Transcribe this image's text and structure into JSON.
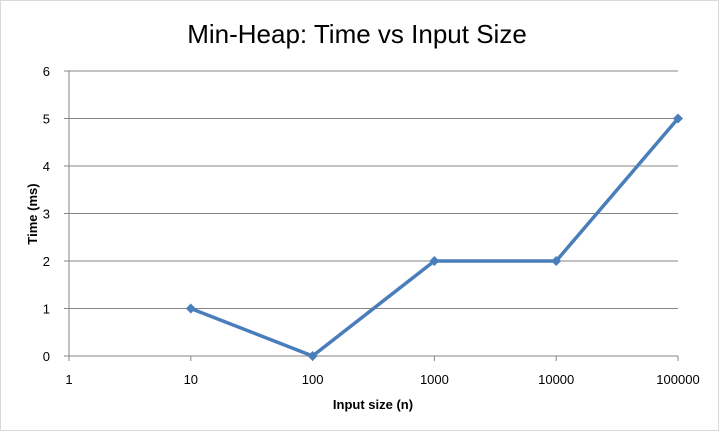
{
  "chart_data": {
    "type": "line",
    "title": "Min-Heap: Time vs Input Size",
    "xlabel": "Input size (n)",
    "ylabel": "Time (ms)",
    "x_scale": "log",
    "x_ticks": [
      "1",
      "10",
      "100",
      "1000",
      "10000",
      "100000"
    ],
    "y_ticks": [
      "0",
      "1",
      "2",
      "3",
      "4",
      "5",
      "6"
    ],
    "xlim": [
      1,
      100000
    ],
    "ylim": [
      0,
      6
    ],
    "grid": "horizontal",
    "legend": "none",
    "color": "#4a7ebb",
    "series": [
      {
        "x": [
          10,
          100,
          1000,
          10000,
          100000
        ],
        "values": [
          1,
          0,
          2,
          2,
          5
        ]
      }
    ]
  }
}
